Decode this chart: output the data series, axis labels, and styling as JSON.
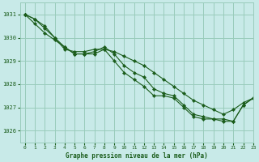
{
  "title": "Graphe pression niveau de la mer (hPa)",
  "bg_color": "#c8eae8",
  "grid_color": "#99ccbb",
  "line_color": "#1a5c1a",
  "marker_color": "#1a5c1a",
  "xlim": [
    -0.5,
    23
  ],
  "ylim": [
    1025.5,
    1031.5
  ],
  "yticks": [
    1026,
    1027,
    1028,
    1029,
    1030,
    1031
  ],
  "xticks": [
    0,
    1,
    2,
    3,
    4,
    5,
    6,
    7,
    8,
    9,
    10,
    11,
    12,
    13,
    14,
    15,
    16,
    17,
    18,
    19,
    20,
    21,
    22,
    23
  ],
  "series": [
    [
      1031.0,
      1030.8,
      1030.4,
      1030.0,
      1029.6,
      1029.3,
      1029.3,
      1029.4,
      1029.6,
      1029.3,
      1028.8,
      1028.5,
      1028.3,
      1027.8,
      1027.6,
      1027.5,
      1027.1,
      1026.7,
      1026.6,
      1026.5,
      1026.5,
      1026.4,
      1027.1,
      1027.4
    ],
    [
      1031.0,
      1030.6,
      1030.2,
      1029.9,
      1029.6,
      1029.3,
      1029.3,
      1029.3,
      1029.5,
      1029.0,
      1028.5,
      1028.2,
      1027.9,
      1027.5,
      1027.5,
      1027.4,
      1027.0,
      1026.6,
      1026.5,
      1026.5,
      1026.4,
      1026.4,
      1027.1,
      1027.4
    ],
    [
      1031.0,
      1030.8,
      1030.5,
      1030.0,
      1029.5,
      1029.4,
      1029.4,
      1029.5,
      1029.5,
      1029.4,
      1029.2,
      1029.0,
      1028.8,
      1028.5,
      1028.2,
      1027.9,
      1027.6,
      1027.3,
      1027.1,
      1026.9,
      1026.7,
      1026.9,
      1027.2,
      1027.4
    ]
  ]
}
